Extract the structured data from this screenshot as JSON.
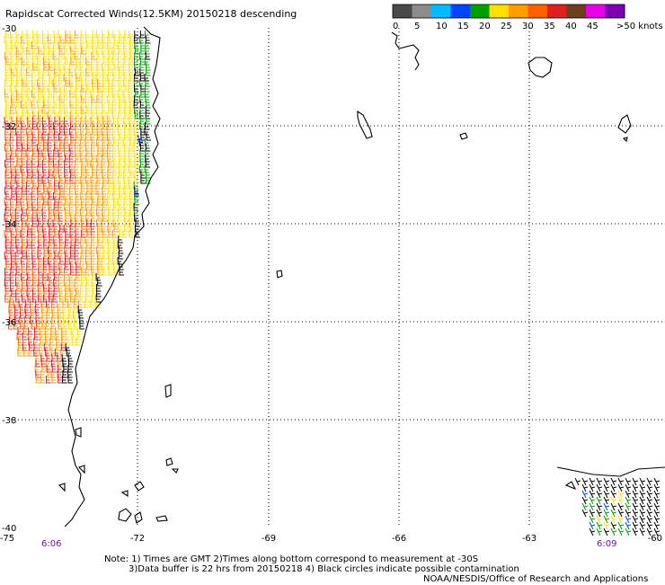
{
  "title": "Rapidscat Corrected Winds(12.5KM) 20150218 descending",
  "colorbar": {
    "ticks": [
      "0",
      "5",
      "10",
      "15",
      "20",
      "25",
      "30",
      "35",
      "40",
      "45",
      ">50 knots"
    ],
    "colors": [
      "#4a4a4a",
      "#8c8c8c",
      "#00bbff",
      "#0044ff",
      "#00a000",
      "#ffe000",
      "#ff9c00",
      "#ff6000",
      "#e02020",
      "#6b3f1c",
      "#e800e8",
      "#7a00b0"
    ]
  },
  "map": {
    "lon_labels": [
      "-75",
      "-72",
      "-69",
      "-66",
      "-63",
      "-60"
    ],
    "lat_labels": [
      "-30",
      "-32",
      "-34",
      "-36",
      "-38",
      "-40"
    ],
    "lon_range": [
      -75,
      -60
    ],
    "lat_range": [
      -40,
      -30
    ],
    "graticule": "dotted",
    "pass_times": [
      "6:06",
      "6:09"
    ]
  },
  "notes": {
    "line1": "Note: 1) Times are GMT 2)Times along bottom correspond to measurement at -30S",
    "line2": "3)Data buffer is 22 hrs from 20150218 4) Black circles indicate possible contamination",
    "credit": "NOAA/NESDIS/Office of Research and Applications"
  }
}
